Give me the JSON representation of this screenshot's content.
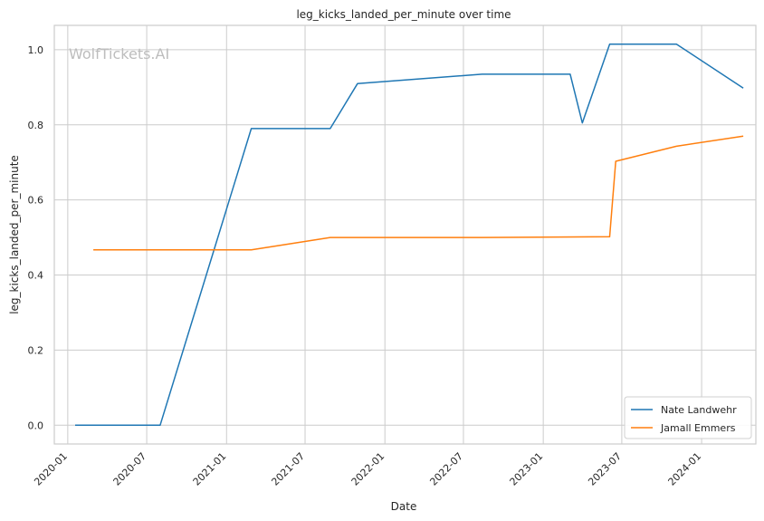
{
  "watermark": "WolfTickets.AI",
  "chart_data": {
    "type": "line",
    "title": "leg_kicks_landed_per_minute over time",
    "xlabel": "Date",
    "ylabel": "leg_kicks_landed_per_minute",
    "x_tick_labels": [
      "2020-01",
      "2020-07",
      "2021-01",
      "2021-07",
      "2022-01",
      "2022-07",
      "2023-01",
      "2023-07",
      "2024-01"
    ],
    "y_ticks": [
      0.0,
      0.2,
      0.4,
      0.6,
      0.8,
      1.0
    ],
    "y_tick_labels": [
      "0.0",
      "0.2",
      "0.4",
      "0.6",
      "0.8",
      "1.0"
    ],
    "xlim": [
      "2019-12-01",
      "2024-05-05"
    ],
    "ylim": [
      -0.05,
      1.065
    ],
    "grid": true,
    "legend_position": "lower-right",
    "colors": {
      "Nate Landwehr": "#1f77b4",
      "Jamall Emmers": "#ff7f0e"
    },
    "series": [
      {
        "name": "Nate Landwehr",
        "x": [
          "2020-01-18",
          "2020-08-01",
          "2021-02-27",
          "2021-08-28",
          "2021-10-30",
          "2022-08-13",
          "2023-03-04",
          "2023-04-01",
          "2023-06-03",
          "2023-11-04",
          "2024-04-06"
        ],
        "y": [
          0.0,
          0.0,
          0.79,
          0.79,
          0.91,
          0.935,
          0.935,
          0.805,
          1.015,
          1.015,
          0.898
        ]
      },
      {
        "name": "Jamall Emmers",
        "x": [
          "2020-02-29",
          "2021-02-27",
          "2021-08-28",
          "2022-08-13",
          "2023-06-03",
          "2023-06-17",
          "2023-11-04",
          "2024-04-06"
        ],
        "y": [
          0.467,
          0.467,
          0.5,
          0.5,
          0.502,
          0.703,
          0.743,
          0.77
        ]
      }
    ]
  }
}
